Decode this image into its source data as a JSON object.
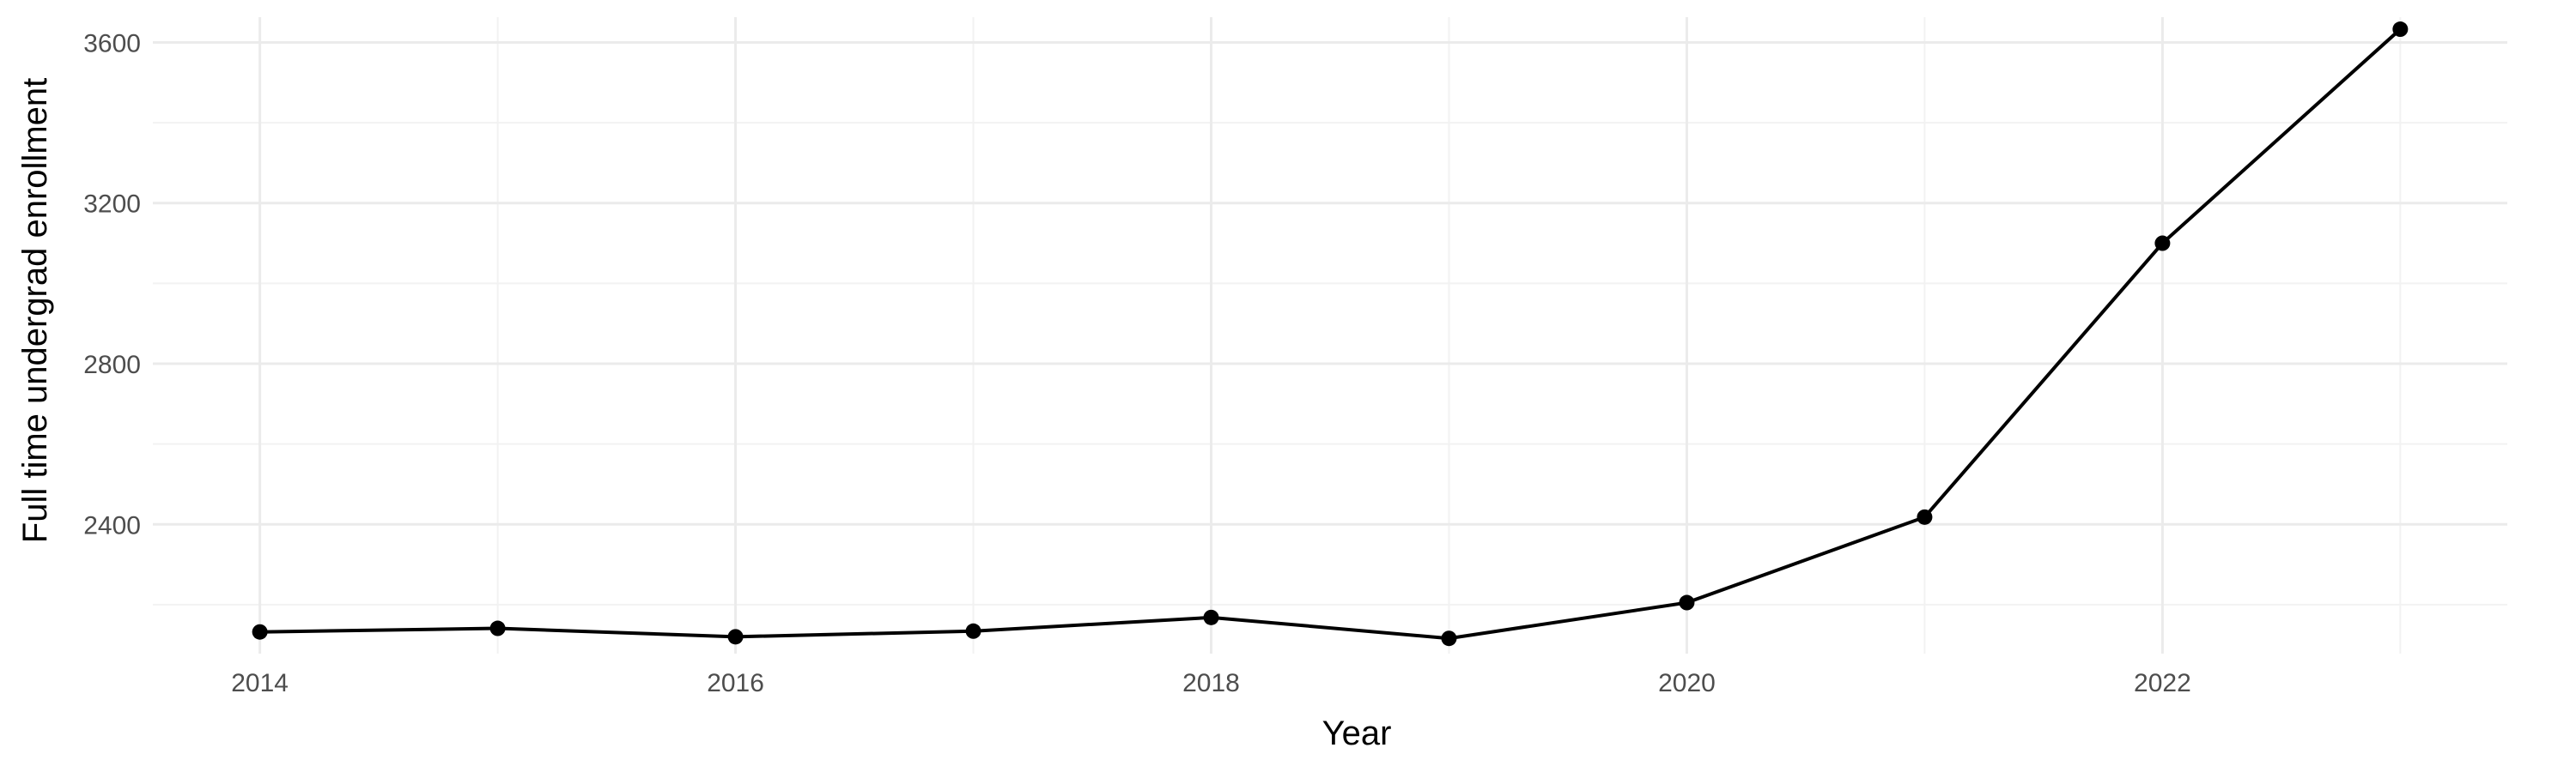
{
  "chart_data": {
    "type": "line",
    "title": "",
    "xlabel": "Year",
    "ylabel": "Full time undergrad enrollment",
    "x": [
      2014,
      2015,
      2016,
      2017,
      2018,
      2019,
      2020,
      2021,
      2022,
      2023
    ],
    "series": [
      {
        "values": [
          2132,
          2141,
          2120,
          2134,
          2168,
          2116,
          2205,
          2418,
          3100,
          3633
        ]
      }
    ],
    "xlim": [
      2013.55,
      2023.45
    ],
    "ylim": [
      2078,
      3663
    ],
    "x_ticks": [
      2014,
      2016,
      2018,
      2020,
      2022
    ],
    "x_tick_labels": [
      "2014",
      "2016",
      "2018",
      "2020",
      "2022"
    ],
    "y_ticks": [
      2400,
      2800,
      3200,
      3600
    ],
    "y_tick_labels": [
      "2400",
      "2800",
      "3200",
      "3600"
    ],
    "y_minor_ticks": [
      2200,
      2600,
      3000,
      3400
    ],
    "grid": true,
    "legend": "none",
    "colors": {
      "line": "#000000",
      "grid": "#ebebeb",
      "background": "#ffffff"
    }
  }
}
